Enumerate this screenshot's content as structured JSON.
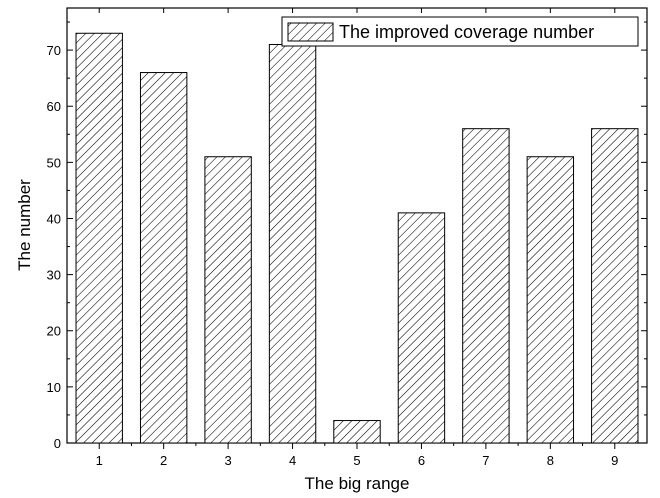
{
  "chart_data": {
    "type": "bar",
    "title": "",
    "xlabel": "The big range",
    "ylabel": "The number",
    "categories": [
      "1",
      "2",
      "3",
      "4",
      "5",
      "6",
      "7",
      "8",
      "9"
    ],
    "series": [
      {
        "name": "The improved coverage number",
        "values": [
          73,
          66,
          51,
          71,
          4,
          41,
          56,
          51,
          56
        ]
      }
    ],
    "ylim": [
      0,
      77.5
    ],
    "yticks": [
      "0",
      "10",
      "20",
      "30",
      "40",
      "50",
      "60",
      "70"
    ],
    "bar_pattern": "diagonal-hatch",
    "grid": false,
    "legend_position": "top-right",
    "colors": {
      "bar_stroke": "#000000",
      "hatch": "#000000",
      "background": "#ffffff"
    }
  }
}
